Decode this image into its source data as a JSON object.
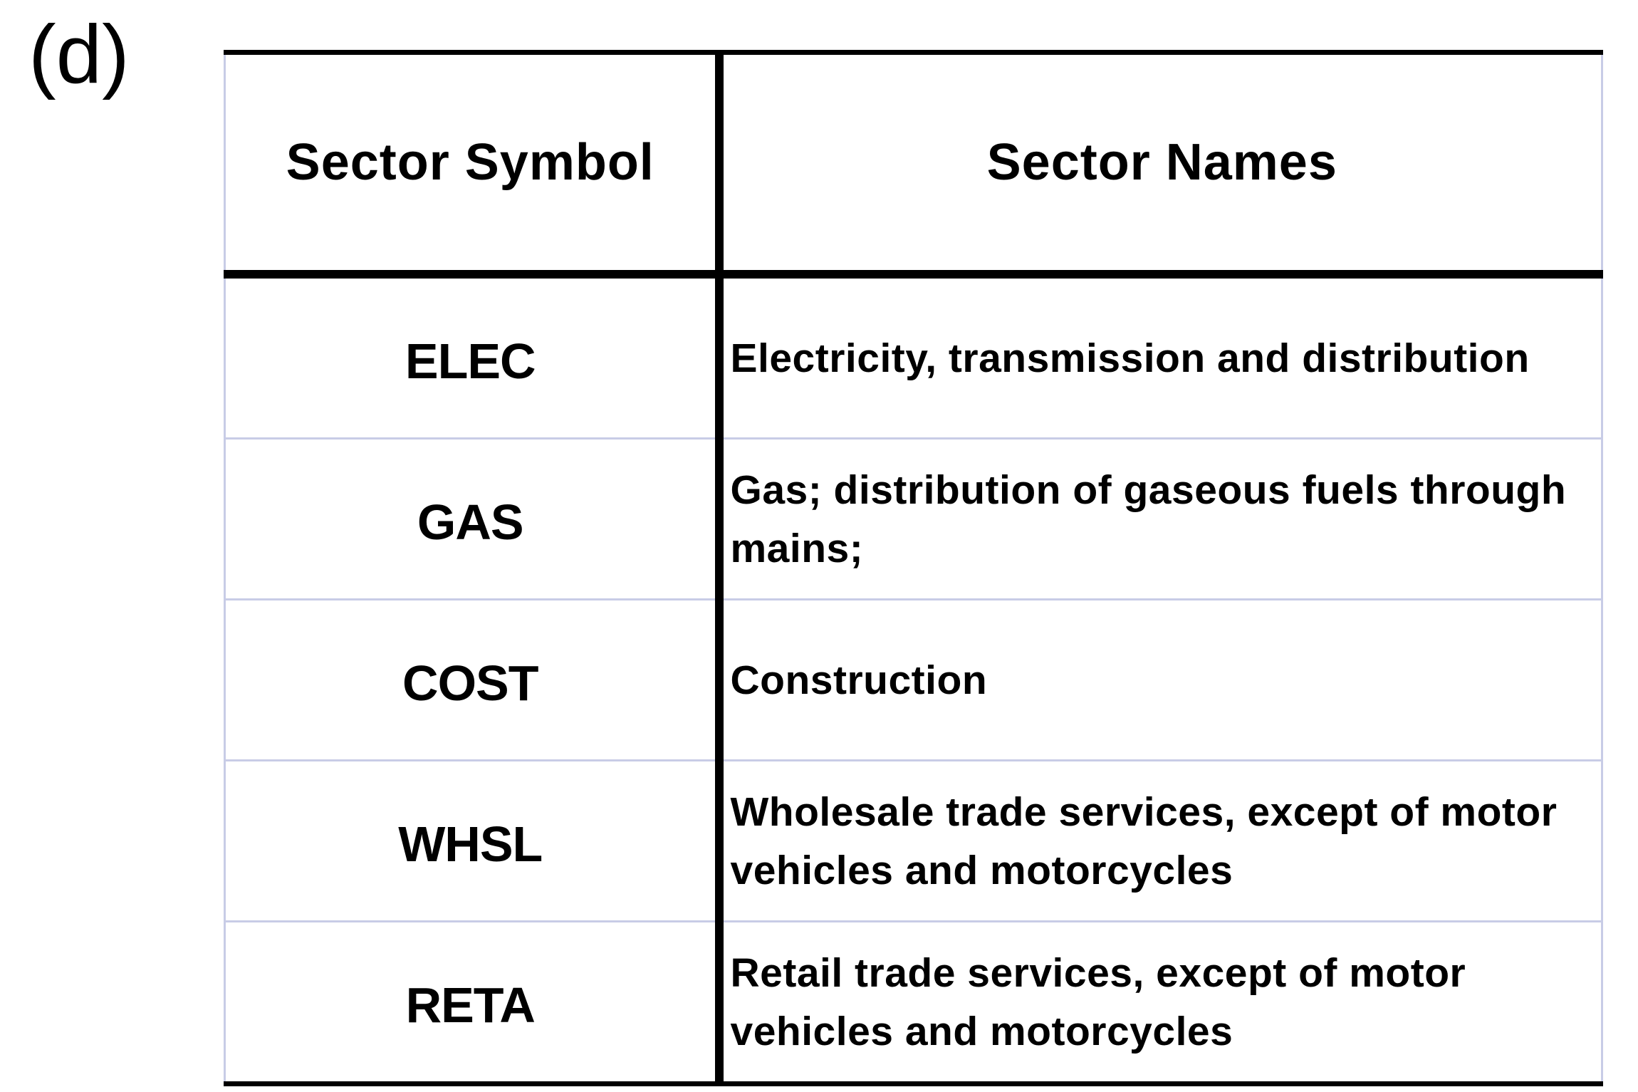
{
  "panel_label": "(d)",
  "table": {
    "headers": {
      "symbol": "Sector Symbol",
      "names": "Sector Names"
    },
    "rows": [
      {
        "symbol": "ELEC",
        "name": "Electricity, transmission and distribution"
      },
      {
        "symbol": "GAS",
        "name": "Gas; distribution of gaseous fuels through mains;"
      },
      {
        "symbol": "COST",
        "name": "Construction"
      },
      {
        "symbol": "WHSL",
        "name": "Wholesale trade services, except of motor vehicles and motorcycles"
      },
      {
        "symbol": "RETA",
        "name": "Retail trade services, except of motor vehicles and motorcycles"
      }
    ],
    "colors": {
      "rule": "#000000",
      "grid": "#c8cce6"
    }
  }
}
